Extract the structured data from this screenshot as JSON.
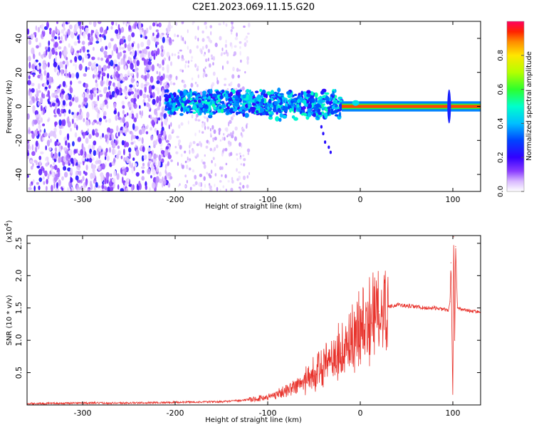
{
  "page_title": "C2E1.2023.069.11.15.G20",
  "colors": {
    "snr_line": "#e8322b",
    "scatter_palette": [
      "#ffffff",
      "#ecdcff",
      "#c79cff",
      "#9150ff",
      "#6a00ff",
      "#2a00ff",
      "#0033ff",
      "#00b3ff",
      "#00ffe0",
      "#38ff3c",
      "#b8ff00",
      "#ffe000",
      "#ff8a00",
      "#ff2a00",
      "#ff0060"
    ]
  },
  "chart_data": [
    {
      "type": "heatmap",
      "title": "C2E1.2023.069.11.15.G20",
      "xlabel": "Height of straight line (km)",
      "ylabel": "Frequency (Hz)",
      "xlim": [
        -360,
        130
      ],
      "ylim": [
        -50,
        50
      ],
      "x_ticks": [
        -300,
        -200,
        -100,
        0,
        100
      ],
      "x_tick_labels": [
        "-300",
        "-200",
        "-100",
        "0",
        "100"
      ],
      "y_ticks": [
        -40,
        -20,
        0,
        20,
        40
      ],
      "y_tick_labels": [
        "-40",
        "-20",
        "0",
        "20",
        "40"
      ],
      "colorbar": {
        "label": "Normalized spectral amplitude",
        "range": [
          0,
          1
        ],
        "ticks": [
          0.0,
          0.2,
          0.4,
          0.6,
          0.8
        ],
        "tick_labels": [
          "0.0",
          "0.2",
          "0.4",
          "0.6",
          "0.8"
        ]
      },
      "regions": [
        {
          "description": "scattered low amplitude noise",
          "x": [
            -360,
            -205
          ],
          "freq": [
            -50,
            50
          ],
          "amplitude": [
            0.0,
            0.25
          ]
        },
        {
          "description": "sparse faint noise",
          "x": [
            -205,
            -120
          ],
          "freq": [
            -50,
            50
          ],
          "amplitude": [
            0.0,
            0.1
          ]
        },
        {
          "description": "signal band",
          "x": [
            -210,
            -20
          ],
          "freq": [
            -8,
            10
          ],
          "amplitude": [
            0.2,
            0.55
          ]
        },
        {
          "description": "carrier line",
          "x": [
            -20,
            130
          ],
          "freq": [
            0,
            0
          ],
          "amplitude": [
            0.8,
            0.95
          ]
        }
      ]
    },
    {
      "type": "line",
      "title": "",
      "xlabel": "Height of straight line (km)",
      "ylabel": "SNR (10 * v/v)",
      "y_scale_note": "(x10",
      "y_scale_exponent": "4",
      "y_scale_suffix": ")",
      "xlim": [
        -360,
        130
      ],
      "ylim": [
        0,
        2.62
      ],
      "x_ticks": [
        -300,
        -200,
        -100,
        0,
        100
      ],
      "x_tick_labels": [
        "-300",
        "-200",
        "-100",
        "0",
        "100"
      ],
      "y_ticks": [
        0.5,
        1.0,
        1.5,
        2.0,
        2.5
      ],
      "y_tick_labels": [
        "0.5",
        "1.0",
        "1.5",
        "2.0",
        "2.5"
      ],
      "series": [
        {
          "name": "",
          "x": [
            -360,
            -300,
            -250,
            -200,
            -150,
            -120,
            -100,
            -80,
            -60,
            -50,
            -40,
            -30,
            -20,
            -15,
            -10,
            -5,
            0,
            5,
            10,
            20,
            30,
            40,
            50,
            60,
            70,
            80,
            90,
            95,
            97,
            98,
            100,
            101,
            102,
            103,
            105,
            110,
            120,
            130
          ],
          "y": [
            0.02,
            0.03,
            0.03,
            0.04,
            0.05,
            0.08,
            0.12,
            0.22,
            0.35,
            0.45,
            0.55,
            0.65,
            0.8,
            0.9,
            0.95,
            1.05,
            1.15,
            1.25,
            1.35,
            1.45,
            1.52,
            1.55,
            1.53,
            1.52,
            1.5,
            1.5,
            1.48,
            1.45,
            1.6,
            2.2,
            0.05,
            2.6,
            1.0,
            2.45,
            1.5,
            1.48,
            1.45,
            1.44
          ]
        }
      ],
      "grid": false
    }
  ]
}
